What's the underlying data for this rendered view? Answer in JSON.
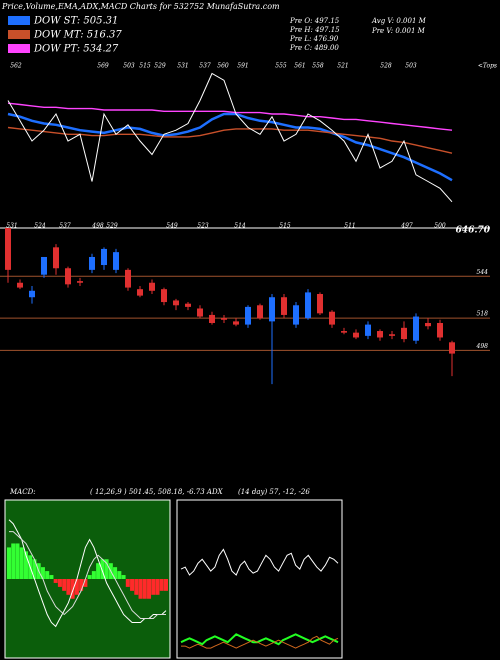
{
  "header": {
    "title": "Price,Volume,EMA,ADX,MACD Charts for 532752 MunafaSutra.com",
    "info": [
      "Pre   O: 497.15",
      "Pre   H: 497.15",
      "Pre   L: 476.90",
      "Pre   C: 489.00"
    ],
    "volume_info": [
      "Avg V: 0.001 M",
      "Pre  V: 0.001 M"
    ]
  },
  "chart_data": [
    {
      "type": "line",
      "ylim": [
        480,
        600
      ],
      "price": {
        "color": "#ffffff",
        "values": [
          570,
          555,
          540,
          548,
          560,
          540,
          545,
          510,
          560,
          545,
          552,
          540,
          530,
          545,
          548,
          553,
          570,
          590,
          585,
          560,
          550,
          545,
          558,
          540,
          545,
          560,
          555,
          548,
          540,
          525,
          545,
          520,
          525,
          540,
          515,
          510,
          505,
          495
        ]
      },
      "series": [
        {
          "name": "DOW ST: 505.31",
          "color": "#1e6fff",
          "values": [
            560,
            558,
            555,
            553,
            552,
            550,
            548,
            547,
            546,
            548,
            550,
            549,
            546,
            544,
            545,
            547,
            550,
            556,
            560,
            560,
            557,
            555,
            554,
            552,
            550,
            550,
            549,
            546,
            543,
            539,
            537,
            534,
            531,
            528,
            524,
            520,
            516,
            511
          ]
        },
        {
          "name": "DOW MT: 516.37",
          "color": "#c8502a",
          "values": [
            550,
            549,
            548,
            547,
            546,
            545,
            545,
            544,
            544,
            545,
            545,
            545,
            544,
            543,
            543,
            543,
            544,
            546,
            548,
            549,
            549,
            549,
            549,
            548,
            548,
            548,
            547,
            546,
            545,
            544,
            543,
            542,
            540,
            539,
            537,
            535,
            533,
            531
          ]
        },
        {
          "name": "DOW PT: 534.27",
          "color": "#ff44ff",
          "values": [
            568,
            567,
            566,
            565,
            565,
            564,
            564,
            564,
            563,
            563,
            563,
            563,
            563,
            562,
            562,
            562,
            562,
            562,
            562,
            561,
            561,
            561,
            560,
            560,
            559,
            558,
            558,
            557,
            556,
            556,
            555,
            554,
            553,
            552,
            551,
            550,
            549,
            548
          ]
        }
      ],
      "tops": [
        "562",
        "569",
        "503",
        "515",
        "529",
        "531",
        "537",
        "560",
        "591",
        "555",
        "561",
        "558",
        "521",
        "528",
        "503"
      ],
      "tops_label": "<Tops",
      "bottoms": [
        "531",
        "524",
        "537",
        "498",
        "529",
        "549",
        "523",
        "514",
        "515",
        "511",
        "497",
        "500"
      ]
    },
    {
      "type": "candlestick",
      "ylim": [
        474,
        574
      ],
      "yticks": [
        544,
        518,
        498
      ],
      "max_label": "646.70",
      "up_color": "#1e6fff",
      "down_color": "#e03030",
      "grid_color": "#a0522d",
      "open": [
        574,
        540,
        531,
        545,
        562,
        549,
        541,
        548,
        551,
        548,
        548,
        536,
        540,
        536,
        529,
        527,
        524,
        520,
        518,
        516,
        514,
        526,
        516,
        531,
        514,
        518,
        533,
        522,
        510,
        509,
        507,
        510,
        508,
        512,
        504,
        515,
        515,
        503
      ],
      "high": [
        574,
        542,
        538,
        556,
        564,
        550,
        543,
        558,
        562,
        561,
        549,
        538,
        542,
        537,
        530,
        528,
        526,
        522,
        520,
        518,
        526,
        527,
        533,
        533,
        528,
        536,
        534,
        523,
        512,
        511,
        516,
        511,
        510,
        516,
        521,
        518,
        517,
        504
      ],
      "low": [
        540,
        536,
        527,
        543,
        545,
        537,
        538,
        546,
        548,
        546,
        535,
        531,
        533,
        526,
        523,
        523,
        518,
        514,
        515,
        513,
        512,
        517,
        477,
        518,
        512,
        517,
        520,
        512,
        508,
        505,
        505,
        504,
        505,
        503,
        502,
        511,
        504,
        482
      ],
      "close": [
        548,
        537,
        535,
        556,
        549,
        539,
        540,
        556,
        561,
        559,
        537,
        532,
        535,
        528,
        526,
        525,
        519,
        515,
        517,
        514,
        525,
        518,
        531,
        520,
        526,
        534,
        521,
        514,
        509,
        506,
        514,
        506,
        507,
        505,
        519,
        513,
        506,
        496
      ]
    },
    {
      "type": "macd",
      "title": "MACD:",
      "params": "( 12,26,9 ) 501.45, 508.18, -6.73 ADX",
      "ylim": [
        -20,
        20
      ],
      "pos_color": "#33ff33",
      "neg_color": "#ff2a2a",
      "background": "#0b5e0b",
      "histogram": [
        8,
        9,
        9,
        8,
        7,
        6,
        5,
        4,
        3,
        2,
        1,
        -1,
        -2,
        -3,
        -4,
        -5,
        -4,
        -3,
        -2,
        1,
        2,
        4,
        5,
        5,
        4,
        3,
        2,
        1,
        -2,
        -3,
        -4,
        -5,
        -5,
        -5,
        -4,
        -4,
        -3,
        -3
      ],
      "series": [
        {
          "color": "#ffffff",
          "values": [
            15,
            14,
            12,
            10,
            6,
            3,
            0,
            -3,
            -6,
            -9,
            -11,
            -12,
            -10,
            -8,
            -6,
            -3,
            0,
            4,
            8,
            10,
            8,
            5,
            2,
            -1,
            -3,
            -5,
            -7,
            -9,
            -10,
            -11,
            -11,
            -11,
            -10,
            -10,
            -9,
            -9,
            -9,
            -8
          ]
        },
        {
          "color": "#dddddd",
          "values": [
            12,
            12,
            11,
            10,
            9,
            7,
            5,
            2,
            0,
            -3,
            -5,
            -7,
            -8,
            -9,
            -8,
            -7,
            -5,
            -3,
            0,
            3,
            5,
            6,
            5,
            4,
            2,
            0,
            -2,
            -4,
            -6,
            -8,
            -9,
            -10,
            -10,
            -10,
            -10,
            -9,
            -9,
            -9
          ]
        }
      ]
    },
    {
      "type": "adx",
      "title": "(14 day) 57, -12, -26",
      "ylim": [
        0,
        80
      ],
      "background": "#000000",
      "series": [
        {
          "color": "#ffffff",
          "values": [
            45,
            46,
            42,
            44,
            48,
            50,
            47,
            44,
            46,
            52,
            55,
            50,
            44,
            42,
            47,
            49,
            45,
            43,
            44,
            48,
            52,
            50,
            46,
            44,
            48,
            52,
            53,
            47,
            45,
            50,
            52,
            49,
            46,
            44,
            47,
            51,
            50,
            48
          ]
        },
        {
          "color": "#22ff22",
          "values": [
            8,
            9,
            10,
            9,
            8,
            7,
            9,
            10,
            11,
            10,
            9,
            8,
            10,
            12,
            11,
            10,
            9,
            8,
            8,
            9,
            10,
            9,
            8,
            7,
            9,
            10,
            11,
            12,
            11,
            10,
            9,
            8,
            9,
            10,
            11,
            10,
            9,
            8
          ]
        },
        {
          "color": "#d2691e",
          "values": [
            6,
            6,
            5,
            6,
            7,
            6,
            5,
            5,
            6,
            7,
            8,
            7,
            6,
            5,
            6,
            7,
            8,
            9,
            8,
            7,
            6,
            7,
            8,
            9,
            8,
            7,
            6,
            5,
            6,
            7,
            8,
            10,
            11,
            9,
            8,
            7,
            9,
            10
          ]
        }
      ]
    }
  ]
}
